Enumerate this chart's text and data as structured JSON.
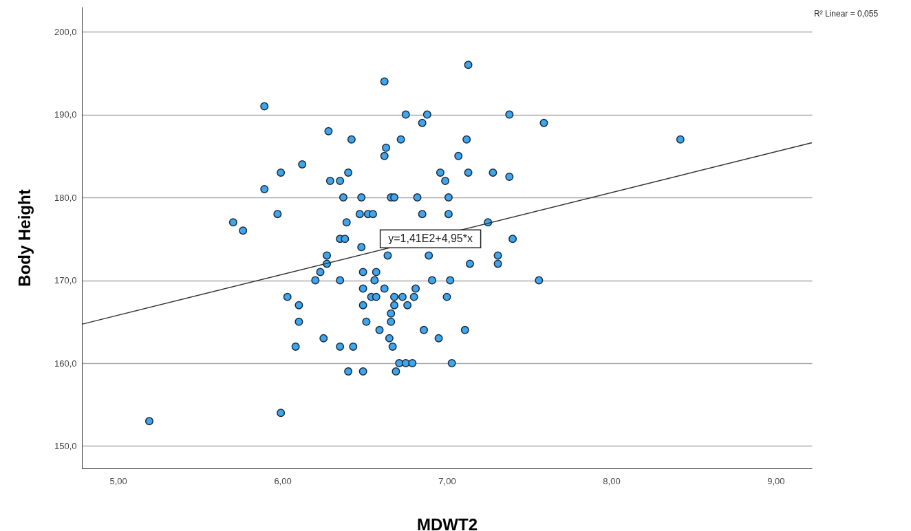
{
  "chart_data": {
    "type": "scatter",
    "xlabel": "MDWT2",
    "ylabel": "Body Height",
    "xlim": [
      4.78,
      9.22
    ],
    "ylim": [
      147.3,
      203
    ],
    "xticks": [
      {
        "value": 5,
        "label": "5,00"
      },
      {
        "value": 6,
        "label": "6,00"
      },
      {
        "value": 7,
        "label": "7,00"
      },
      {
        "value": 8,
        "label": "8,00"
      },
      {
        "value": 9,
        "label": "9,00"
      }
    ],
    "yticks": [
      {
        "value": 150,
        "label": "150,0"
      },
      {
        "value": 160,
        "label": "160,0"
      },
      {
        "value": 170,
        "label": "170,0"
      },
      {
        "value": 180,
        "label": "180,0"
      },
      {
        "value": 190,
        "label": "190,0"
      },
      {
        "value": 200,
        "label": "200,0"
      }
    ],
    "grid": "y",
    "series": [
      {
        "color": "#3ea6ee",
        "marker": "circle",
        "x": [
          5.19,
          5.7,
          5.76,
          5.89,
          5.89,
          5.97,
          5.99,
          5.99,
          6.03,
          6.08,
          6.1,
          6.1,
          6.12,
          6.2,
          6.23,
          6.25,
          6.27,
          6.27,
          6.28,
          6.29,
          6.35,
          6.35,
          6.35,
          6.35,
          6.37,
          6.38,
          6.39,
          6.4,
          6.4,
          6.42,
          6.43,
          6.47,
          6.48,
          6.48,
          6.49,
          6.49,
          6.49,
          6.49,
          6.51,
          6.52,
          6.55,
          6.54,
          6.57,
          6.56,
          6.57,
          6.59,
          6.62,
          6.62,
          6.63,
          6.62,
          6.64,
          6.65,
          6.66,
          6.66,
          6.66,
          6.67,
          6.68,
          6.68,
          6.68,
          6.69,
          6.71,
          6.72,
          6.73,
          6.75,
          6.75,
          6.76,
          6.79,
          6.8,
          6.81,
          6.82,
          6.85,
          6.85,
          6.86,
          6.88,
          6.89,
          6.91,
          6.95,
          6.96,
          6.99,
          7.0,
          7.01,
          7.01,
          7.02,
          7.03,
          7.07,
          7.11,
          7.12,
          7.13,
          7.13,
          7.14,
          7.25,
          7.28,
          7.31,
          7.31,
          7.38,
          7.38,
          7.4,
          7.56,
          7.59,
          8.42
        ],
        "values": [
          153,
          177,
          176,
          191,
          181,
          178,
          183,
          154,
          168,
          162,
          167,
          165,
          184,
          170,
          171,
          163,
          173,
          172,
          188,
          182,
          182,
          175,
          170,
          162,
          180,
          175,
          177,
          183,
          159,
          187,
          162,
          178,
          180,
          174,
          171,
          169,
          167,
          159,
          165,
          178,
          178,
          168,
          171,
          170,
          168,
          164,
          194,
          185,
          186,
          169,
          173,
          163,
          180,
          166,
          165,
          162,
          180,
          168,
          167,
          159,
          160,
          187,
          168,
          160,
          190,
          167,
          160,
          168,
          169,
          180,
          178,
          189,
          164,
          190,
          173,
          170,
          163,
          183,
          182,
          168,
          180,
          178,
          170,
          160,
          185,
          164,
          187,
          196,
          183,
          172,
          177,
          183,
          173,
          172,
          190,
          182.5,
          175,
          170,
          189,
          187
        ]
      },
      {
        "type": "line",
        "color": "#333333",
        "x": [
          4.78,
          9.22
        ],
        "values": [
          164.7,
          186.6
        ]
      }
    ],
    "annotations": [
      {
        "text": "y=1,41E2+4,95*x",
        "x": 6.9,
        "y": 175
      },
      "R² Linear = 0,055"
    ]
  }
}
